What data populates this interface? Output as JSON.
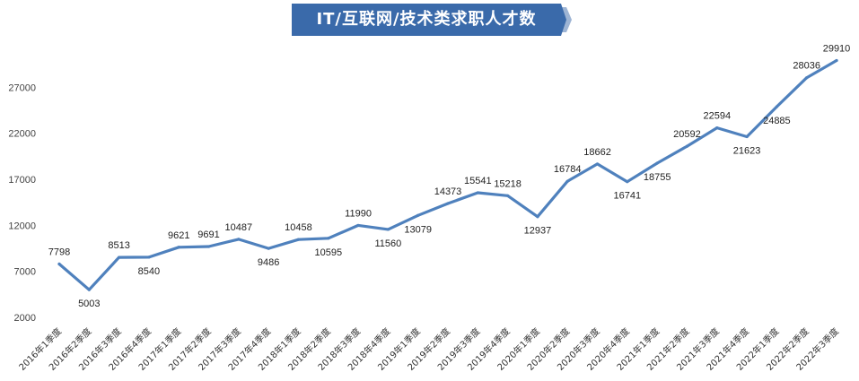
{
  "title": "IT/互联网/技术类求职人才数",
  "colors": {
    "line": "#4f81bd",
    "title_bg": "#3a6aaa",
    "title_shadow": "#9db4d4"
  },
  "chart_data": {
    "type": "line",
    "title": "IT/互联网/技术类求职人才数",
    "xlabel": "",
    "ylabel": "",
    "ylim": [
      2000,
      32000
    ],
    "yticks": [
      2000,
      7000,
      12000,
      17000,
      22000,
      27000
    ],
    "grid": false,
    "legend": "none",
    "categories": [
      "2016年1季度",
      "2016年2季度",
      "2016年3季度",
      "2016年4季度",
      "2017年1季度",
      "2017年2季度",
      "2017年3季度",
      "2017年4季度",
      "2018年1季度",
      "2018年2季度",
      "2018年3季度",
      "2018年4季度",
      "2019年1季度",
      "2019年2季度",
      "2019年3季度",
      "2019年4季度",
      "2020年1季度",
      "2020年2季度",
      "2020年3季度",
      "2020年4季度",
      "2021年1季度",
      "2021年2季度",
      "2021年3季度",
      "2021年4季度",
      "2022年1季度",
      "2022年2季度",
      "2022年3季度"
    ],
    "values": [
      7798,
      5003,
      8513,
      8540,
      9621,
      9691,
      10487,
      9486,
      10458,
      10595,
      11990,
      11560,
      13079,
      14373,
      15541,
      15218,
      12937,
      16784,
      18662,
      16741,
      18755,
      20592,
      22594,
      21623,
      24885,
      28036,
      29910
    ],
    "label_position": [
      "above",
      "below",
      "above",
      "below",
      "above",
      "above",
      "above",
      "below",
      "above",
      "below",
      "above",
      "below",
      "below",
      "above",
      "above",
      "above",
      "below",
      "above",
      "above",
      "below",
      "below",
      "above",
      "above",
      "below",
      "below",
      "above",
      "above"
    ]
  }
}
